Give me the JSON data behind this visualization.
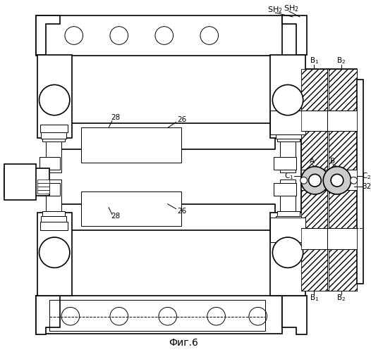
{
  "title": "Фиг.6",
  "bg_color": "#ffffff",
  "line_color": "#000000",
  "lw_main": 1.2,
  "lw_thin": 0.7,
  "fig_width": 5.26,
  "fig_height": 5.0,
  "dpi": 100
}
